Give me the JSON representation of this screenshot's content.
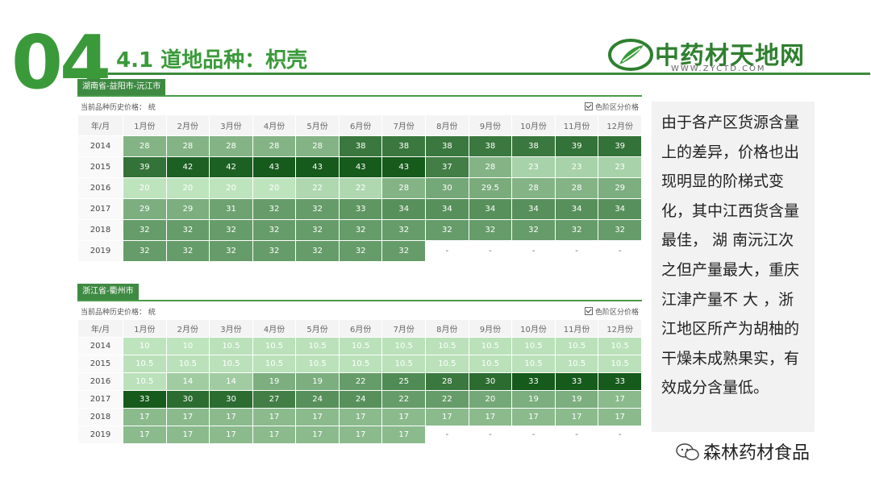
{
  "slide": {
    "number": "04",
    "title": "4.1  道地品种：枳壳"
  },
  "logo": {
    "name": "中药材天地网",
    "url": "WWW.ZYCTD.COM"
  },
  "colors": {
    "brand_green": "#3a9a3a",
    "header_green": "#3f8a43"
  },
  "months": [
    "1月份",
    "2月份",
    "3月份",
    "4月份",
    "5月份",
    "6月份",
    "7月份",
    "8月份",
    "9月份",
    "10月份",
    "11月份",
    "12月份"
  ],
  "year_header": "年/月",
  "history_label": "当前品种历史价格：",
  "history_unit": "统",
  "color_toggle_label": "色阶区分价格",
  "tables": [
    {
      "region": "湖南省-益阳市-沅江市",
      "rows": [
        {
          "year": "2014",
          "values": [
            "28",
            "28",
            "28",
            "28",
            "28",
            "38",
            "38",
            "38",
            "38",
            "38",
            "39",
            "39"
          ]
        },
        {
          "year": "2015",
          "values": [
            "39",
            "42",
            "42",
            "43",
            "43",
            "43",
            "43",
            "37",
            "28",
            "23",
            "23",
            "23"
          ]
        },
        {
          "year": "2016",
          "values": [
            "20",
            "20",
            "20",
            "20",
            "22",
            "22",
            "28",
            "30",
            "29.5",
            "28",
            "28",
            "29"
          ]
        },
        {
          "year": "2017",
          "values": [
            "29",
            "29",
            "31",
            "32",
            "32",
            "33",
            "34",
            "34",
            "34",
            "34",
            "34",
            "34"
          ]
        },
        {
          "year": "2018",
          "values": [
            "32",
            "32",
            "32",
            "32",
            "32",
            "32",
            "32",
            "32",
            "32",
            "32",
            "32",
            "32"
          ]
        },
        {
          "year": "2019",
          "values": [
            "32",
            "32",
            "32",
            "32",
            "32",
            "32",
            "32",
            "-",
            "-",
            "-",
            "-",
            "-"
          ]
        }
      ]
    },
    {
      "region": "浙江省-衢州市",
      "rows": [
        {
          "year": "2014",
          "values": [
            "10",
            "10",
            "10.5",
            "10.5",
            "10.5",
            "10.5",
            "10.5",
            "10.5",
            "10.5",
            "10.5",
            "10.5",
            "10.5"
          ]
        },
        {
          "year": "2015",
          "values": [
            "10.5",
            "10.5",
            "10.5",
            "10.5",
            "10.5",
            "10.5",
            "10.5",
            "10.5",
            "10.5",
            "10.5",
            "10.5",
            "10.5"
          ]
        },
        {
          "year": "2016",
          "values": [
            "10.5",
            "14",
            "14",
            "19",
            "19",
            "22",
            "25",
            "28",
            "30",
            "33",
            "33",
            "33"
          ]
        },
        {
          "year": "2017",
          "values": [
            "33",
            "30",
            "30",
            "27",
            "24",
            "24",
            "22",
            "22",
            "20",
            "19",
            "19",
            "17"
          ]
        },
        {
          "year": "2018",
          "values": [
            "17",
            "17",
            "17",
            "17",
            "17",
            "17",
            "17",
            "17",
            "17",
            "17",
            "17",
            "17"
          ]
        },
        {
          "year": "2019",
          "values": [
            "17",
            "17",
            "17",
            "17",
            "17",
            "17",
            "17",
            "-",
            "-",
            "-",
            "-",
            "-"
          ]
        }
      ]
    }
  ],
  "side_text": "由于各产区货源含量上的差异，价格也出现明显的阶梯式变化，其中江西货含量最佳， 湖 南沅江次之但产量最大，重庆江津产量不 大 ，浙江地区所产为胡柚的干燥未成熟果实，有效成分含量低。",
  "footer": {
    "wechat_name": "森林药材食品"
  }
}
